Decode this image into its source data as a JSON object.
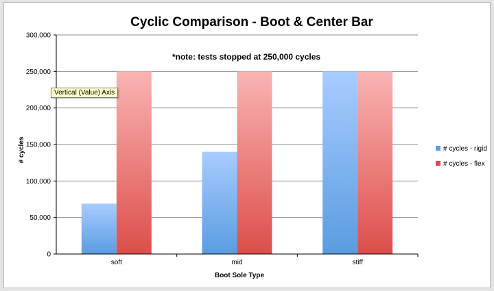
{
  "colors": {
    "rigid_top": "#a8ccff",
    "rigid_bottom": "#5a9ce0",
    "flex_top": "#f9b4b4",
    "flex_bottom": "#dd4e4a",
    "gridline": "#8c8c8c",
    "axis": "#000000"
  },
  "tooltip": {
    "text": "Vertical (Value) Axis"
  },
  "chart_data": {
    "type": "bar",
    "title": "Cyclic Comparison - Boot & Center Bar",
    "annotation": "*note:  tests stopped at 250,000 cycles",
    "xlabel": "Boot Sole Type",
    "ylabel": "# cycles",
    "categories": [
      "soft",
      "mid",
      "stiff"
    ],
    "ylim": [
      0,
      300000
    ],
    "yticks": [
      0,
      50000,
      100000,
      150000,
      200000,
      250000,
      300000
    ],
    "ytick_labels": [
      "0",
      "50,000",
      "100,000",
      "150,000",
      "200,000",
      "250,000",
      "300,000"
    ],
    "grid": true,
    "legend_position": "right",
    "series": [
      {
        "name": "# cycles - rigid",
        "values": [
          69000,
          140000,
          250000
        ]
      },
      {
        "name": "# cycles - flex",
        "values": [
          250000,
          250000,
          250000
        ]
      }
    ]
  }
}
